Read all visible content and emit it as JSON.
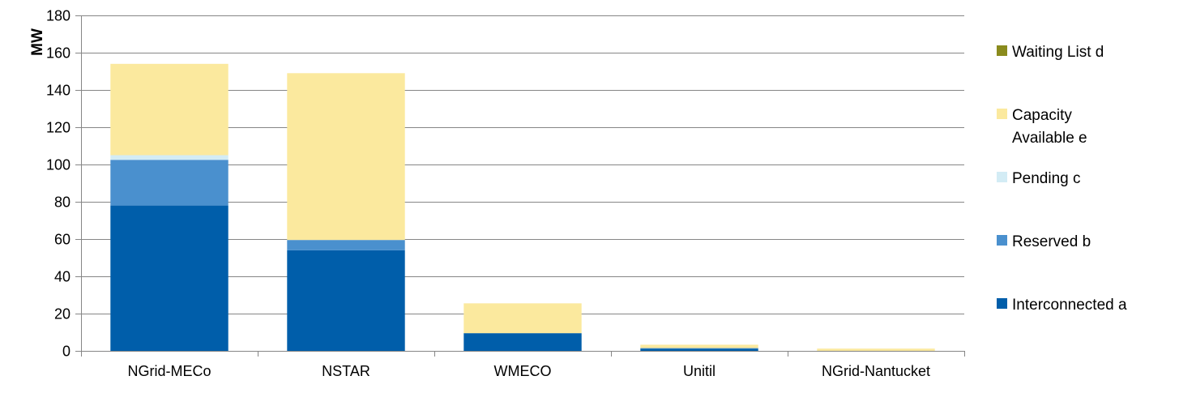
{
  "chart_data": {
    "type": "bar",
    "stacked": true,
    "ylabel": "MW",
    "xlabel": "",
    "title": "",
    "ylim": [
      0,
      180
    ],
    "yticks": [
      0,
      20,
      40,
      60,
      80,
      100,
      120,
      140,
      160,
      180
    ],
    "grid": true,
    "legend_position": "right",
    "categories": [
      "NGrid-MECo",
      "NSTAR",
      "WMECO",
      "Unitil",
      "NGrid-Nantucket"
    ],
    "series": [
      {
        "name": "Interconnected a",
        "color": "#005EAA",
        "values": [
          78,
          54,
          9.5,
          1.2,
          0
        ]
      },
      {
        "name": "Reserved b",
        "color": "#4A90CE",
        "values": [
          24.5,
          5.5,
          0,
          0.3,
          0
        ]
      },
      {
        "name": "Pending c",
        "color": "#D3ECF5",
        "values": [
          2.5,
          0,
          0,
          0,
          0
        ]
      },
      {
        "name": "Capacity Available e",
        "color": "#FBE99E",
        "values": [
          49,
          89.5,
          16,
          1.8,
          1.2
        ]
      },
      {
        "name": "Waiting List d",
        "color": "#8A8B1D",
        "values": [
          0,
          0,
          0,
          0,
          0
        ]
      }
    ],
    "legend_order": [
      {
        "label_lines": [
          "Waiting List d"
        ],
        "series_index": 4
      },
      {
        "label_lines": [
          "Capacity",
          "Available e"
        ],
        "series_index": 3
      },
      {
        "label_lines": [
          "Pending c"
        ],
        "series_index": 2
      },
      {
        "label_lines": [
          "Reserved b"
        ],
        "series_index": 1
      },
      {
        "label_lines": [
          "Interconnected a"
        ],
        "series_index": 0
      }
    ]
  }
}
